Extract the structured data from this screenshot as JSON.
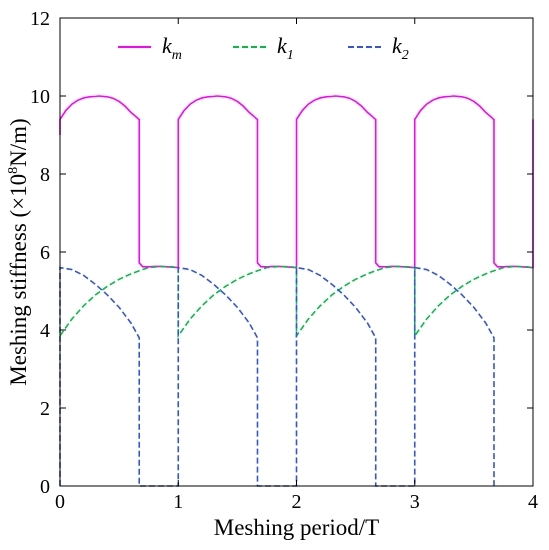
{
  "chart_data": {
    "type": "line",
    "xlabel": "Meshing period/T",
    "ylabel_parts": [
      "Meshing stiffness (×10",
      "8",
      "N/m)"
    ],
    "xlim": [
      0,
      4
    ],
    "ylim": [
      0,
      12
    ],
    "xticks": [
      0,
      1,
      2,
      3,
      4
    ],
    "yticks": [
      0,
      2,
      4,
      6,
      8,
      10,
      12
    ],
    "grid": false,
    "legend_position": "top",
    "series": [
      {
        "name": "km",
        "label_base": "k",
        "label_sub": "m",
        "color": "#ff00ff",
        "dash": "solid",
        "x": [
          0,
          0,
          0.05,
          0.1,
          0.15,
          0.2,
          0.25,
          0.3,
          0.33,
          0.4,
          0.45,
          0.5,
          0.55,
          0.6,
          0.65,
          0.66,
          0.67,
          0.67,
          0.7,
          0.75,
          0.8,
          0.85,
          0.9,
          0.95,
          1.0,
          1.0,
          1.05,
          1.1,
          1.15,
          1.2,
          1.25,
          1.3,
          1.33,
          1.4,
          1.45,
          1.5,
          1.55,
          1.6,
          1.65,
          1.66,
          1.67,
          1.67,
          1.7,
          1.75,
          1.8,
          1.85,
          1.9,
          1.95,
          2.0,
          2.0,
          2.05,
          2.1,
          2.15,
          2.2,
          2.25,
          2.3,
          2.33,
          2.4,
          2.45,
          2.5,
          2.55,
          2.6,
          2.65,
          2.66,
          2.67,
          2.67,
          2.7,
          2.75,
          2.8,
          2.85,
          2.9,
          2.95,
          3.0,
          3.0,
          3.05,
          3.1,
          3.15,
          3.2,
          3.25,
          3.3,
          3.33,
          3.4,
          3.45,
          3.5,
          3.55,
          3.6,
          3.65,
          3.66,
          3.67,
          3.67,
          3.7,
          3.75,
          3.8,
          3.85,
          3.9,
          3.95,
          4.0,
          4.0
        ],
        "y": [
          9.0,
          9.4,
          9.63,
          9.79,
          9.89,
          9.95,
          9.98,
          9.99,
          10.0,
          9.98,
          9.94,
          9.86,
          9.74,
          9.58,
          9.45,
          9.42,
          9.4,
          5.72,
          5.62,
          5.62,
          5.63,
          5.63,
          5.62,
          5.61,
          5.6,
          9.4,
          9.63,
          9.79,
          9.89,
          9.95,
          9.98,
          9.99,
          10.0,
          9.98,
          9.94,
          9.86,
          9.74,
          9.58,
          9.45,
          9.42,
          9.4,
          5.72,
          5.62,
          5.62,
          5.63,
          5.63,
          5.62,
          5.61,
          5.6,
          9.4,
          9.63,
          9.79,
          9.89,
          9.95,
          9.98,
          9.99,
          10.0,
          9.98,
          9.94,
          9.86,
          9.74,
          9.58,
          9.45,
          9.42,
          9.4,
          5.72,
          5.62,
          5.62,
          5.63,
          5.63,
          5.62,
          5.61,
          5.6,
          9.4,
          9.63,
          9.79,
          9.89,
          9.95,
          9.98,
          9.99,
          10.0,
          9.98,
          9.94,
          9.86,
          9.74,
          9.58,
          9.45,
          9.42,
          9.4,
          5.72,
          5.62,
          5.62,
          5.63,
          5.63,
          5.62,
          5.61,
          5.6,
          9.4
        ]
      },
      {
        "name": "k1",
        "label_base": "k",
        "label_sub": "1",
        "color": "#00c040",
        "dash": "dashed",
        "x": [
          0,
          0.1,
          0.2,
          0.3,
          0.4,
          0.5,
          0.6,
          0.67,
          0.75,
          0.85,
          0.95,
          1.0,
          1.0,
          1.1,
          1.2,
          1.3,
          1.4,
          1.5,
          1.6,
          1.67,
          1.75,
          1.85,
          1.95,
          2.0,
          2.0,
          2.1,
          2.2,
          2.3,
          2.4,
          2.5,
          2.6,
          2.67,
          2.75,
          2.85,
          2.95,
          3.0,
          3.0,
          3.1,
          3.2,
          3.3,
          3.4,
          3.5,
          3.6,
          3.67,
          3.75,
          3.85,
          3.95,
          4.0
        ],
        "y": [
          3.85,
          4.28,
          4.62,
          4.9,
          5.12,
          5.3,
          5.44,
          5.52,
          5.6,
          5.63,
          5.62,
          5.6,
          3.85,
          4.28,
          4.62,
          4.9,
          5.12,
          5.3,
          5.44,
          5.52,
          5.6,
          5.63,
          5.62,
          5.6,
          3.85,
          4.28,
          4.62,
          4.9,
          5.12,
          5.3,
          5.44,
          5.52,
          5.6,
          5.63,
          5.62,
          5.6,
          3.85,
          4.28,
          4.62,
          4.9,
          5.12,
          5.3,
          5.44,
          5.52,
          5.6,
          5.63,
          5.62,
          5.6
        ]
      },
      {
        "name": "k2",
        "label_base": "k",
        "label_sub": "2",
        "color": "#3355dd",
        "dash": "dashed",
        "x": [
          0,
          0,
          0.1,
          0.2,
          0.3,
          0.4,
          0.5,
          0.6,
          0.67,
          0.67,
          1.0,
          1.0,
          1.1,
          1.2,
          1.3,
          1.4,
          1.5,
          1.6,
          1.67,
          1.67,
          2.0,
          2.0,
          2.1,
          2.2,
          2.3,
          2.4,
          2.5,
          2.6,
          2.67,
          2.67,
          3.0,
          3.0,
          3.1,
          3.2,
          3.3,
          3.4,
          3.5,
          3.6,
          3.67,
          3.67
        ],
        "y": [
          0,
          5.6,
          5.55,
          5.4,
          5.17,
          4.9,
          4.58,
          4.18,
          3.8,
          0,
          0,
          5.6,
          5.55,
          5.4,
          5.17,
          4.9,
          4.58,
          4.18,
          3.8,
          0,
          0,
          5.6,
          5.55,
          5.4,
          5.17,
          4.9,
          4.58,
          4.18,
          3.8,
          0,
          0,
          5.6,
          5.55,
          5.4,
          5.17,
          4.9,
          4.58,
          4.18,
          3.8,
          0
        ]
      }
    ]
  }
}
